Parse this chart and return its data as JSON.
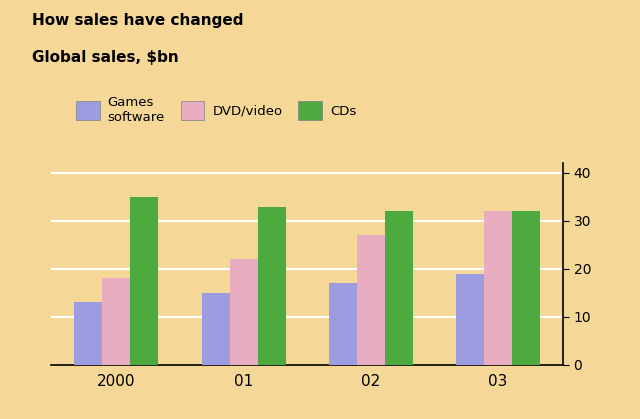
{
  "title_line1": "How sales have changed",
  "title_line2": "Global sales, $bn",
  "categories": [
    "2000",
    "01",
    "02",
    "03"
  ],
  "games": [
    13,
    15,
    17,
    19
  ],
  "dvd": [
    18,
    22,
    27,
    32
  ],
  "cds": [
    35,
    33,
    32,
    32
  ],
  "colors": {
    "games": "#9b9de0",
    "dvd": "#e8adc0",
    "cds": "#4daa3e"
  },
  "background_color": "#f5d898",
  "ylim": [
    0,
    42
  ],
  "yticks": [
    0,
    10,
    20,
    30,
    40
  ],
  "legend_labels": [
    "Games\nsoftware",
    "DVD/video",
    "CDs"
  ],
  "bar_width": 0.22
}
